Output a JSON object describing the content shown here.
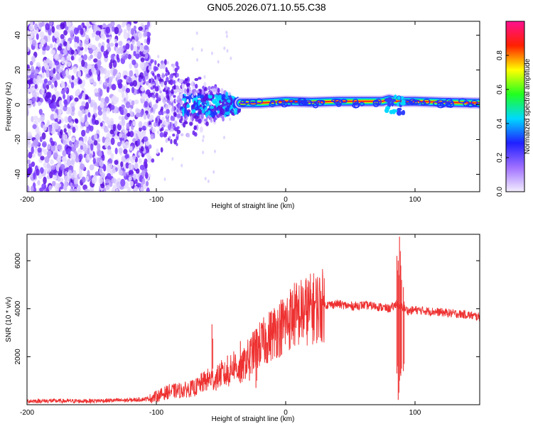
{
  "title": "GN05.2026.071.10.55.C38",
  "chart_data": [
    {
      "type": "heatmap",
      "xlabel": "Height of straight line (km)",
      "ylabel": "Frequency (Hz)",
      "xlim": [
        -200,
        150
      ],
      "ylim": [
        -50,
        48
      ],
      "xticks": [
        -200,
        -100,
        0,
        100
      ],
      "xtick_labels": [
        "-200",
        "-100",
        "0",
        "100"
      ],
      "yticks": [
        -40,
        -20,
        0,
        20,
        40
      ],
      "ytick_labels": [
        "-40",
        "-20",
        "0",
        "20",
        "40"
      ],
      "noise_extent_km": [
        -200,
        -105
      ],
      "transition_km": [
        -105,
        -35
      ],
      "ridge": {
        "x": [
          -35,
          -20,
          0,
          20,
          40,
          60,
          75,
          80,
          85,
          90,
          100,
          120,
          150
        ],
        "frequency": [
          1,
          1,
          2,
          1.5,
          2,
          2,
          2,
          3,
          2,
          2,
          2,
          1.5,
          1
        ]
      },
      "colorbar": {
        "label": "Normalized spectral amplitude",
        "range": [
          0.0,
          1.0
        ],
        "ticks": [
          0.0,
          0.2,
          0.4,
          0.6,
          0.8
        ],
        "tick_labels": [
          "0.0",
          "0.2",
          "0.4",
          "0.6",
          "0.8"
        ],
        "colors": [
          "#f3eeff",
          "#a070ff",
          "#2020ff",
          "#00d8ff",
          "#20ff20",
          "#ffff00",
          "#ff2000",
          "#ff1090"
        ]
      }
    },
    {
      "type": "line",
      "xlabel": "Height of straight line (km)",
      "ylabel": "SNR (10 * v/v)",
      "xlim": [
        -200,
        150
      ],
      "ylim": [
        0,
        7100
      ],
      "xticks": [
        -200,
        -100,
        0,
        100
      ],
      "xtick_labels": [
        "-200",
        "-100",
        "0",
        "100"
      ],
      "yticks": [
        2000,
        4000,
        6000
      ],
      "ytick_labels": [
        "2000",
        "4000",
        "6000"
      ],
      "series": [
        {
          "name": "SNR",
          "color": "#ee3030",
          "x": [
            -200,
            -180,
            -160,
            -140,
            -120,
            -105,
            -100,
            -95,
            -90,
            -80,
            -70,
            -65,
            -58,
            -55,
            -50,
            -45,
            -40,
            -35,
            -30,
            -25,
            -20,
            -15,
            -10,
            -5,
            0,
            5,
            10,
            20,
            30,
            40,
            50,
            60,
            70,
            80,
            84,
            86,
            88,
            90,
            92,
            95,
            100,
            110,
            120,
            130,
            140,
            150
          ],
          "y": [
            150,
            160,
            150,
            170,
            190,
            250,
            350,
            450,
            550,
            600,
            700,
            900,
            1100,
            1000,
            1300,
            1200,
            1700,
            1400,
            1900,
            2200,
            2500,
            2700,
            3000,
            3200,
            3400,
            3700,
            3800,
            4000,
            4150,
            4200,
            4100,
            4150,
            4100,
            4000,
            4100,
            4300,
            4000,
            4100,
            4000,
            3900,
            3950,
            3900,
            3850,
            3800,
            3750,
            3650
          ]
        }
      ],
      "spikes": [
        {
          "x": -57,
          "top": 3350,
          "bottom": 1200
        },
        {
          "x": -45,
          "top": 2050,
          "bottom": 1000
        },
        {
          "x": -35,
          "top": 2650,
          "bottom": 900
        },
        {
          "x": -28,
          "top": 2200,
          "bottom": 1000
        },
        {
          "x": -23,
          "top": 3150,
          "bottom": 700
        },
        {
          "x": 8,
          "top": 4750,
          "bottom": 3200
        },
        {
          "x": 86,
          "top": 6200,
          "bottom": 1300
        },
        {
          "x": 87,
          "top": 6000,
          "bottom": 200
        },
        {
          "x": 88,
          "top": 7000,
          "bottom": 1000
        },
        {
          "x": 89,
          "top": 5800,
          "bottom": 1200
        },
        {
          "x": 91,
          "top": 4900,
          "bottom": 1400
        }
      ]
    }
  ]
}
